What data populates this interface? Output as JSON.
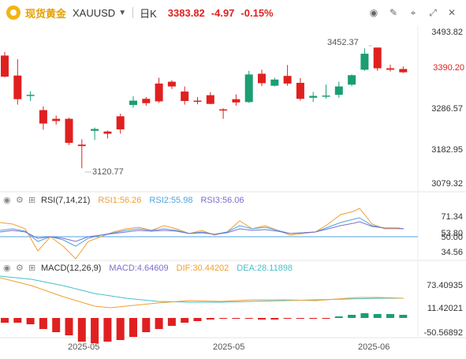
{
  "header": {
    "instrument_name": "现货黄金",
    "symbol": "XAUUSD",
    "period": "日K",
    "last_price": "3383.82",
    "change": "-4.97",
    "change_pct": "-0.15%"
  },
  "toolbar_icons": [
    "eye-icon",
    "pencil-icon",
    "cursor-icon",
    "expand-icon",
    "close-icon"
  ],
  "price_axis": [
    "3493.82",
    "3390.20",
    "3286.57",
    "3182.95",
    "3079.32"
  ],
  "price_badge": "3390.20",
  "annotations": {
    "high": "3452.37",
    "low": "3120.77"
  },
  "rsi": {
    "title": "RSI(7,14,21)",
    "rsi1": "RSI1:56.26",
    "rsi2": "RSI2:55.98",
    "rsi3": "RSI3:56.06",
    "axis": [
      "71.34",
      "50.00",
      "34.56"
    ],
    "axis_overlap": "53.80"
  },
  "macd": {
    "title": "MACD(12,26,9)",
    "macd": "MACD:4.64609",
    "dif": "DIF:30.44202",
    "dea": "DEA:28.11898",
    "axis": [
      "73.40935",
      "11.42021",
      "-50.56892"
    ]
  },
  "x_labels": [
    "2025-05",
    "2025-05",
    "2025-06"
  ],
  "colors": {
    "up": "#1a9e72",
    "down": "#e02020",
    "rsi1": "#f0a030",
    "rsi2": "#4fa3e0",
    "rsi3": "#7b6fd0",
    "dif": "#f0a030",
    "dea": "#48c0c8"
  },
  "chart_data": {
    "type": "candlestick",
    "ylim": [
      3079.32,
      3493.82
    ],
    "candles": [
      {
        "o": 3430,
        "h": 3440,
        "l": 3370,
        "c": 3372
      },
      {
        "o": 3375,
        "h": 3420,
        "l": 3295,
        "c": 3310
      },
      {
        "o": 3320,
        "h": 3332,
        "l": 3305,
        "c": 3322
      },
      {
        "o": 3280,
        "h": 3290,
        "l": 3226,
        "c": 3243
      },
      {
        "o": 3256,
        "h": 3265,
        "l": 3240,
        "c": 3250
      },
      {
        "o": 3256,
        "h": 3259,
        "l": 3184,
        "c": 3190
      },
      {
        "o": 3185,
        "h": 3200,
        "l": 3120,
        "c": 3181
      },
      {
        "o": 3223,
        "h": 3232,
        "l": 3198,
        "c": 3228
      },
      {
        "o": 3221,
        "h": 3224,
        "l": 3202,
        "c": 3215
      },
      {
        "o": 3263,
        "h": 3270,
        "l": 3215,
        "c": 3227
      },
      {
        "o": 3294,
        "h": 3318,
        "l": 3286,
        "c": 3306
      },
      {
        "o": 3311,
        "h": 3316,
        "l": 3292,
        "c": 3299
      },
      {
        "o": 3353,
        "h": 3369,
        "l": 3300,
        "c": 3304
      },
      {
        "o": 3358,
        "h": 3362,
        "l": 3338,
        "c": 3345
      },
      {
        "o": 3331,
        "h": 3345,
        "l": 3295,
        "c": 3305
      },
      {
        "o": 3306,
        "h": 3316,
        "l": 3296,
        "c": 3304
      },
      {
        "o": 3321,
        "h": 3329,
        "l": 3296,
        "c": 3297
      },
      {
        "o": 3282,
        "h": 3285,
        "l": 3256,
        "c": 3279
      },
      {
        "o": 3310,
        "h": 3323,
        "l": 3292,
        "c": 3301
      },
      {
        "o": 3302,
        "h": 3388,
        "l": 3300,
        "c": 3378
      },
      {
        "o": 3380,
        "h": 3391,
        "l": 3346,
        "c": 3354
      },
      {
        "o": 3347,
        "h": 3369,
        "l": 3345,
        "c": 3364
      },
      {
        "o": 3374,
        "h": 3404,
        "l": 3347,
        "c": 3353
      },
      {
        "o": 3355,
        "h": 3368,
        "l": 3306,
        "c": 3311
      },
      {
        "o": 3314,
        "h": 3330,
        "l": 3302,
        "c": 3319
      },
      {
        "o": 3318,
        "h": 3350,
        "l": 3312,
        "c": 3320
      },
      {
        "o": 3322,
        "h": 3358,
        "l": 3314,
        "c": 3345
      },
      {
        "o": 3350,
        "h": 3378,
        "l": 3346,
        "c": 3376
      },
      {
        "o": 3391,
        "h": 3450,
        "l": 3388,
        "c": 3435
      },
      {
        "o": 3452,
        "h": 3452,
        "l": 3388,
        "c": 3395
      },
      {
        "o": 3395,
        "h": 3405,
        "l": 3386,
        "c": 3391
      },
      {
        "o": 3393,
        "h": 3400,
        "l": 3382,
        "c": 3384
      }
    ]
  }
}
